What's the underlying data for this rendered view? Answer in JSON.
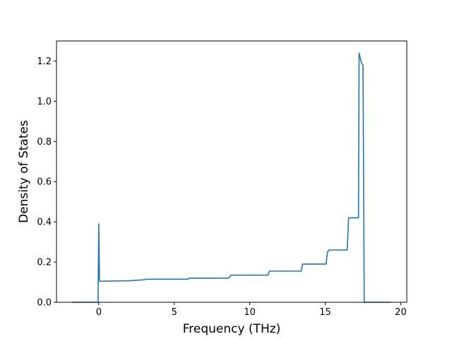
{
  "chart_data": {
    "type": "line",
    "title": "",
    "xlabel": "Frequency (THz)",
    "ylabel": "Density of States",
    "xlim": [
      -2.8,
      20.4
    ],
    "ylim": [
      0,
      1.3
    ],
    "xticks": [
      0,
      5,
      10,
      15,
      20
    ],
    "xtick_labels": [
      "0",
      "5",
      "10",
      "15",
      "20"
    ],
    "yticks": [
      0.0,
      0.2,
      0.4,
      0.6,
      0.8,
      1.0,
      1.2
    ],
    "ytick_labels": [
      "0.0",
      "0.2",
      "0.4",
      "0.6",
      "0.8",
      "1.0",
      "1.2"
    ],
    "grid": false,
    "line_color": "#1f77b4",
    "series": [
      {
        "x": [
          -1.75,
          -0.05,
          0.0,
          0.05,
          0.2,
          2.0,
          3.0,
          3.1,
          5.9,
          6.0,
          8.6,
          8.75,
          11.2,
          11.3,
          13.4,
          13.5,
          15.05,
          15.15,
          15.25,
          16.45,
          16.55,
          17.2,
          17.22,
          17.24,
          17.4,
          17.5,
          17.58,
          17.62,
          19.3
        ],
        "y": [
          0.0,
          0.0,
          0.39,
          0.105,
          0.105,
          0.107,
          0.112,
          0.115,
          0.115,
          0.12,
          0.12,
          0.135,
          0.135,
          0.155,
          0.155,
          0.19,
          0.19,
          0.25,
          0.26,
          0.26,
          0.42,
          0.42,
          0.8,
          1.24,
          1.19,
          1.18,
          0.0,
          0.0,
          0.0
        ]
      }
    ]
  }
}
